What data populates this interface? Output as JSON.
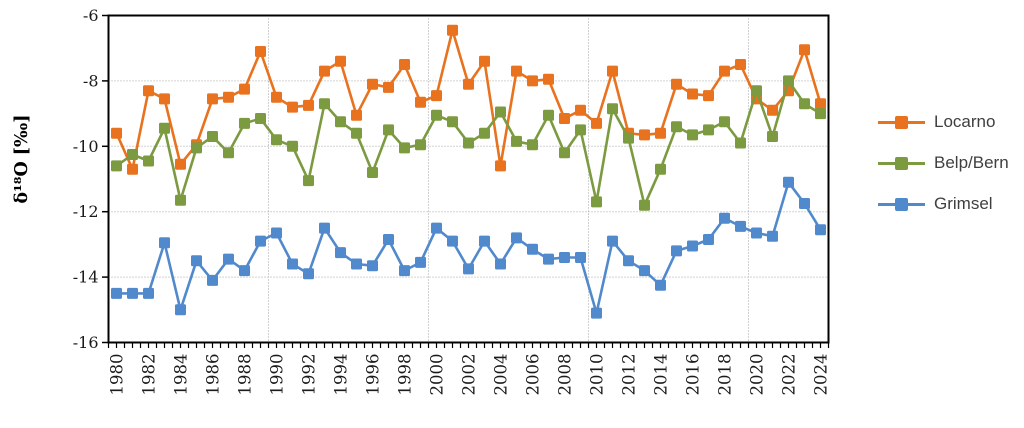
{
  "chart_data": {
    "type": "line",
    "title": "",
    "xlabel": "",
    "ylabel": "δ¹⁸O [‰]",
    "ylim": [
      -16,
      -6
    ],
    "y_ticks": [
      -6,
      -8,
      -10,
      -12,
      -14,
      -16
    ],
    "x_label_interval": 2,
    "x_gridline_years": [
      1990,
      2000,
      2010,
      2020
    ],
    "grid": true,
    "legend_position": "right",
    "years": [
      1980,
      1981,
      1982,
      1983,
      1984,
      1985,
      1986,
      1987,
      1988,
      1989,
      1990,
      1991,
      1992,
      1993,
      1994,
      1995,
      1996,
      1997,
      1998,
      1999,
      2000,
      2001,
      2002,
      2003,
      2004,
      2005,
      2006,
      2007,
      2008,
      2009,
      2010,
      2011,
      2012,
      2013,
      2014,
      2015,
      2016,
      2017,
      2018,
      2019,
      2020,
      2021,
      2022,
      2023,
      2024
    ],
    "series": [
      {
        "name": "Locarno",
        "color": "#E8721E",
        "values": [
          -9.6,
          -10.7,
          -8.3,
          -8.55,
          -10.55,
          -9.95,
          -8.55,
          -8.5,
          -8.25,
          -7.1,
          -8.5,
          -8.8,
          -8.75,
          -7.7,
          -7.4,
          -9.05,
          -8.1,
          -8.2,
          -7.5,
          -8.65,
          -8.45,
          -6.45,
          -8.1,
          -7.4,
          -10.6,
          -7.7,
          -8.0,
          -7.95,
          -9.15,
          -8.9,
          -9.3,
          -7.7,
          -9.6,
          -9.65,
          -9.6,
          -8.1,
          -8.4,
          -8.45,
          -7.7,
          -7.5,
          -8.55,
          -8.9,
          -8.3,
          -7.05,
          -8.7
        ]
      },
      {
        "name": "Belp/Bern",
        "color": "#7C9A40",
        "values": [
          -10.6,
          -10.25,
          -10.45,
          -9.45,
          -11.65,
          -10.05,
          -9.7,
          -10.2,
          -9.3,
          -9.15,
          -9.8,
          -10.0,
          -11.05,
          -8.7,
          -9.25,
          -9.6,
          -10.8,
          -9.5,
          -10.05,
          -9.95,
          -9.05,
          -9.25,
          -9.9,
          -9.6,
          -8.95,
          -9.85,
          -9.95,
          -9.05,
          -10.2,
          -9.5,
          -11.7,
          -8.85,
          -9.75,
          -11.8,
          -10.7,
          -9.4,
          -9.65,
          -9.5,
          -9.25,
          -9.9,
          -8.3,
          -9.7,
          -8.0,
          -8.7,
          -9.0
        ]
      },
      {
        "name": "Grimsel",
        "color": "#5189CD",
        "values": [
          -14.5,
          -14.5,
          -14.5,
          -12.95,
          -15.0,
          -13.5,
          -14.1,
          -13.45,
          -13.8,
          -12.9,
          -12.65,
          -13.6,
          -13.9,
          -12.5,
          -13.25,
          -13.6,
          -13.65,
          -12.85,
          -13.8,
          -13.55,
          -12.5,
          -12.9,
          -13.75,
          -12.9,
          -13.6,
          -12.8,
          -13.15,
          -13.45,
          -13.4,
          -13.4,
          -15.1,
          -12.9,
          -13.5,
          -13.8,
          -14.25,
          -13.2,
          -13.05,
          -12.85,
          -12.2,
          -12.45,
          -12.65,
          -12.75,
          -11.1,
          -11.75,
          -12.55
        ]
      }
    ],
    "colors": {
      "grid": "#A6A6A6",
      "axis": "#000000",
      "tick_label": "#1A1A1A",
      "legend_text": "#3F3F3F",
      "background": "#FFFFFF"
    }
  }
}
